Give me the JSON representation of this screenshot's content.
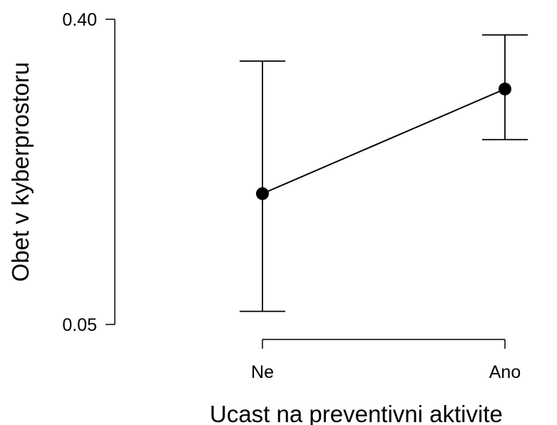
{
  "chart_data": {
    "type": "line",
    "title": "",
    "xlabel": "Ucast na preventivni aktivite",
    "ylabel": "Obet v kyberprostoru",
    "categories": [
      "Ne",
      "Ano"
    ],
    "y_ticks": [
      {
        "value": 0.05,
        "label": "0.05"
      },
      {
        "value": 0.4,
        "label": "0.40"
      }
    ],
    "ylim": [
      0.05,
      0.4
    ],
    "series": [
      {
        "values": [
          0.2,
          0.32
        ],
        "ci_lower": [
          0.065,
          0.262
        ],
        "ci_upper": [
          0.352,
          0.382
        ]
      }
    ],
    "grid": false,
    "colors": {
      "line": "#000000",
      "marker": "#000000"
    }
  }
}
